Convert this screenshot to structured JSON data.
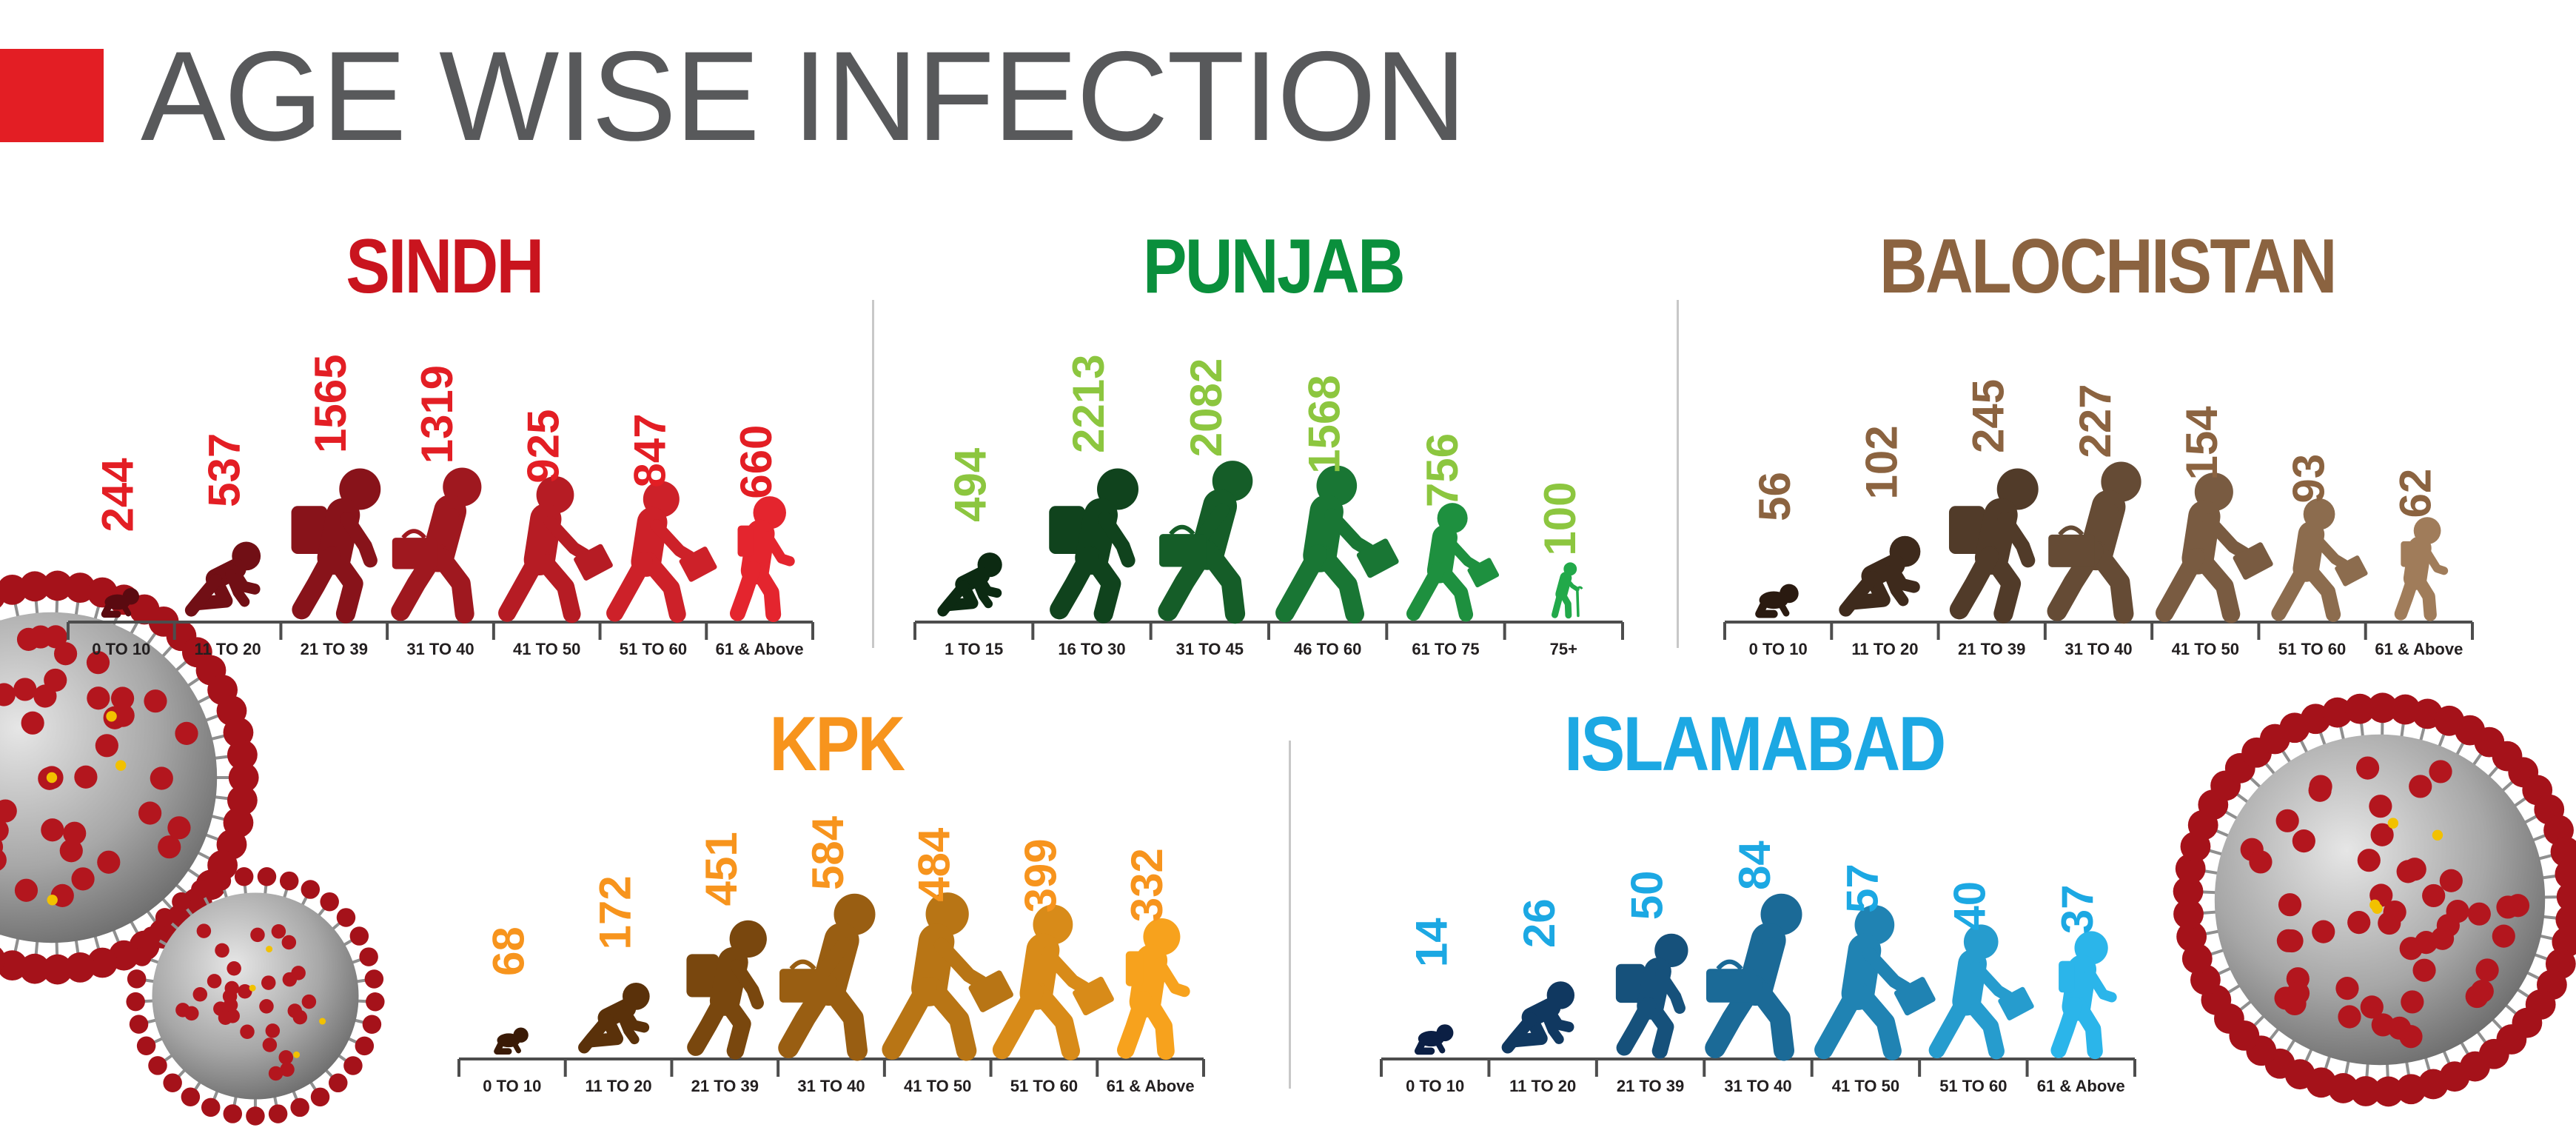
{
  "title": "AGE WISE INFECTION",
  "colors": {
    "accent": "#e31e24",
    "title_text": "#58595b",
    "sindh": "#c9141e",
    "punjab": "#0a8f3c",
    "punjab_values": "#8cc63f",
    "balochistan": "#8b6340",
    "kpk": "#f7941d",
    "islamabad": "#1ca8e3",
    "axis": "#4d4d4d"
  },
  "chart_data": [
    {
      "type": "bar",
      "title": "SINDH",
      "categories": [
        "0 TO 10",
        "11 TO 20",
        "21 TO 39",
        "31 TO 40",
        "41 TO 50",
        "51 TO 60",
        "61 & Above"
      ],
      "values": [
        244,
        537,
        1565,
        1319,
        925,
        847,
        660
      ],
      "icons": [
        "baby-crawling-icon",
        "child-crawling-icon",
        "student-backpack-icon",
        "person-satchel-icon",
        "person-briefcase-icon",
        "person-briefcase-icon",
        "elderly-person-icon"
      ]
    },
    {
      "type": "bar",
      "title": "PUNJAB",
      "categories": [
        "1 TO 15",
        "16 TO 30",
        "31 TO 45",
        "46 TO 60",
        "61 TO 75",
        "75+"
      ],
      "values": [
        494,
        2213,
        2082,
        1568,
        756,
        100
      ],
      "icons": [
        "child-crawling-icon",
        "student-backpack-icon",
        "person-satchel-icon",
        "person-briefcase-icon",
        "person-briefcase-icon",
        "elderly-cane-icon"
      ]
    },
    {
      "type": "bar",
      "title": "BALOCHISTAN",
      "categories": [
        "0 TO 10",
        "11 TO 20",
        "21 TO 39",
        "31 TO 40",
        "41 TO 50",
        "51 TO 60",
        "61 & Above"
      ],
      "values": [
        56,
        102,
        245,
        227,
        154,
        93,
        62
      ],
      "icons": [
        "baby-crawling-icon",
        "child-crawling-icon",
        "student-backpack-icon",
        "person-satchel-icon",
        "person-briefcase-icon",
        "person-briefcase-icon",
        "elderly-person-icon"
      ]
    },
    {
      "type": "bar",
      "title": "KPK",
      "categories": [
        "0 TO 10",
        "11 TO 20",
        "21 TO 39",
        "31 TO 40",
        "41 TO 50",
        "51 TO 60",
        "61 & Above"
      ],
      "values": [
        68,
        172,
        451,
        584,
        484,
        399,
        332
      ],
      "icons": [
        "baby-crawling-icon",
        "child-crawling-icon",
        "student-backpack-icon",
        "person-satchel-icon",
        "person-briefcase-icon",
        "person-briefcase-icon",
        "elderly-person-icon"
      ]
    },
    {
      "type": "bar",
      "title": "ISLAMABAD",
      "categories": [
        "0 TO 10",
        "11 TO 20",
        "21 TO 39",
        "31 TO 40",
        "41 TO 50",
        "51 TO 60",
        "61 & Above"
      ],
      "values": [
        14,
        26,
        50,
        84,
        57,
        40,
        37
      ],
      "icons": [
        "baby-crawling-icon",
        "child-crawling-icon",
        "student-backpack-icon",
        "person-satchel-icon",
        "person-briefcase-icon",
        "person-briefcase-icon",
        "elderly-person-icon"
      ]
    }
  ],
  "decorations": [
    "virus-icon",
    "virus-icon",
    "virus-icon"
  ]
}
